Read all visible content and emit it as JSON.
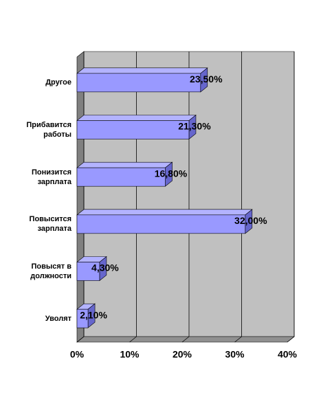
{
  "chart_data": {
    "type": "bar",
    "orientation": "horizontal",
    "categories": [
      "Другое",
      "Прибавится работы",
      "Понизится зарплата",
      "Повысится зарплата",
      "Повысят в должности",
      "Уволят"
    ],
    "values": [
      23.5,
      21.3,
      16.8,
      32.0,
      4.3,
      2.1
    ],
    "value_labels": [
      "23,50%",
      "21,30%",
      "16,80%",
      "32,00%",
      "4,30%",
      "2,10%"
    ],
    "color": "#9999ff",
    "xlim": [
      0,
      40
    ],
    "xticks": [
      {
        "value": 0,
        "label": "0%"
      },
      {
        "value": 10,
        "label": "10%"
      },
      {
        "value": 20,
        "label": "20%"
      },
      {
        "value": 30,
        "label": "30%"
      },
      {
        "value": 40,
        "label": "40%"
      }
    ],
    "grid": true
  }
}
